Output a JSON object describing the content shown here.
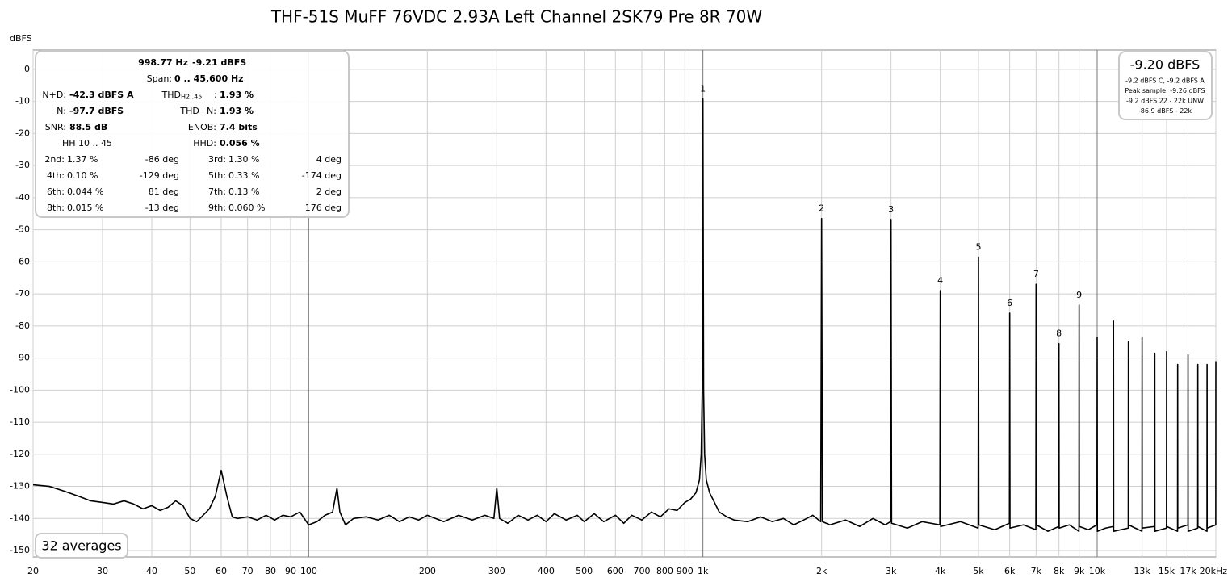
{
  "chart_data": {
    "type": "line",
    "title": "THF-51S MuFF 76VDC 2.93A Left Channel 2SK79 Pre 8R 70W",
    "ylabel": "dBFS",
    "xscale": "log",
    "grid": true,
    "color": "#000000",
    "xlim": [
      20,
      20000
    ],
    "ylim": [
      -152,
      6
    ],
    "yticks": [
      0,
      -10,
      -20,
      -30,
      -40,
      -50,
      -60,
      -70,
      -80,
      -90,
      -100,
      -110,
      -120,
      -130,
      -140,
      -150
    ],
    "xticks": [
      20,
      30,
      40,
      50,
      60,
      70,
      80,
      90,
      100,
      200,
      300,
      400,
      500,
      600,
      700,
      800,
      900,
      {
        "value": 1000,
        "label": "1k"
      },
      {
        "value": 2000,
        "label": "2k"
      },
      {
        "value": 3000,
        "label": "3k"
      },
      {
        "value": 4000,
        "label": "4k"
      },
      {
        "value": 5000,
        "label": "5k"
      },
      {
        "value": 6000,
        "label": "6k"
      },
      {
        "value": 7000,
        "label": "7k"
      },
      {
        "value": 8000,
        "label": "8k"
      },
      {
        "value": 9000,
        "label": "9k"
      },
      {
        "value": 10000,
        "label": "10k"
      },
      {
        "value": 13000,
        "label": "13k"
      },
      {
        "value": 15000,
        "label": "15k"
      },
      {
        "value": 17000,
        "label": "17k"
      },
      {
        "value": 20000,
        "label": "20kHz"
      }
    ],
    "x": [
      20,
      22,
      24,
      26,
      28,
      30,
      32,
      34,
      36,
      38,
      40,
      42,
      44,
      46,
      48,
      50,
      52,
      54,
      56,
      58,
      60,
      62,
      64,
      66,
      70,
      74,
      78,
      82,
      86,
      90,
      95,
      100,
      105,
      110,
      115,
      118,
      120,
      124,
      130,
      140,
      150,
      160,
      170,
      180,
      190,
      200,
      220,
      240,
      260,
      280,
      295,
      300,
      305,
      320,
      340,
      360,
      380,
      400,
      420,
      450,
      480,
      500,
      530,
      560,
      600,
      630,
      660,
      700,
      740,
      780,
      820,
      860,
      900,
      930,
      960,
      980,
      990,
      996,
      1000,
      1004,
      1010,
      1020,
      1040,
      1070,
      1100,
      1150,
      1200,
      1300,
      1400,
      1500,
      1600,
      1700,
      1800,
      1900,
      1990,
      2000,
      2010,
      2100,
      2300,
      2500,
      2700,
      2900,
      2990,
      3000,
      3010,
      3300,
      3600,
      3990,
      4000,
      4010,
      4500,
      4990,
      5000,
      5010,
      5500,
      5990,
      6000,
      6010,
      6500,
      6990,
      7000,
      7010,
      7500,
      7990,
      8000,
      8010,
      8500,
      8990,
      9000,
      9010,
      9500,
      9990,
      10000,
      10010,
      10500,
      10990,
      11000,
      11010,
      11990,
      12000,
      12010,
      12990,
      13000,
      13010,
      13990,
      14000,
      14010,
      14990,
      15000,
      15010,
      15990,
      16000,
      16010,
      16990,
      17000,
      17010,
      17990,
      18000,
      18010,
      18990,
      19000,
      19010,
      19990,
      20000
    ],
    "values": [
      -129.5,
      -130,
      -131.5,
      -133,
      -134.5,
      -135,
      -135.5,
      -134.5,
      -135.5,
      -137,
      -136,
      -137.5,
      -136.5,
      -134.5,
      -136,
      -140,
      -141,
      -139,
      -137,
      -133,
      -125,
      -133,
      -139.5,
      -140,
      -139.5,
      -140.5,
      -139,
      -140.5,
      -139,
      -139.5,
      -138,
      -142,
      -141,
      -139,
      -138,
      -130.5,
      -138,
      -142,
      -140,
      -139.5,
      -140.5,
      -139,
      -141,
      -139.5,
      -140.5,
      -139,
      -141,
      -139,
      -140.5,
      -139,
      -140,
      -130.5,
      -140,
      -141.5,
      -139,
      -140.5,
      -139,
      -141,
      -138.5,
      -140.5,
      -139,
      -141,
      -138.5,
      -141,
      -139,
      -141.5,
      -139,
      -140.5,
      -138,
      -139.5,
      -137,
      -137.5,
      -135,
      -134,
      -132,
      -128,
      -120,
      -100,
      -9.2,
      -100,
      -120,
      -128,
      -132,
      -135,
      -138,
      -139.5,
      -140.5,
      -141,
      -139.5,
      -141,
      -140,
      -142,
      -140.5,
      -139,
      -141,
      -46.5,
      -141,
      -142,
      -140.5,
      -142.5,
      -140,
      -142,
      -141,
      -46.8,
      -141.5,
      -143,
      -141,
      -142,
      -69,
      -142.5,
      -141,
      -143,
      -58.5,
      -142,
      -143.5,
      -141.5,
      -76,
      -143,
      -142,
      -143.5,
      -67,
      -142,
      -144,
      -142.5,
      -85.5,
      -143,
      -142,
      -144,
      -73.5,
      -142.5,
      -143.5,
      -142,
      -83.5,
      -144,
      -143,
      -142.5,
      -78.5,
      -144,
      -143,
      -85,
      -142,
      -144,
      -83.5,
      -143,
      -142.5,
      -88.5,
      -144,
      -143,
      -88,
      -142.5,
      -144,
      -92,
      -143,
      -142,
      -89,
      -144,
      -143,
      -92,
      -142.5,
      -144,
      -92,
      -143,
      -142,
      -91
    ],
    "markers": [
      {
        "label": 1,
        "x": 1000,
        "y": -9.2
      },
      {
        "label": 2,
        "x": 2000,
        "y": -46.5
      },
      {
        "label": 3,
        "x": 3000,
        "y": -46.8
      },
      {
        "label": 4,
        "x": 4000,
        "y": -69
      },
      {
        "label": 5,
        "x": 5000,
        "y": -58.5
      },
      {
        "label": 6,
        "x": 6000,
        "y": -76
      },
      {
        "label": 7,
        "x": 7000,
        "y": -67
      },
      {
        "label": 8,
        "x": 8000,
        "y": -85.5
      },
      {
        "label": 9,
        "x": 9000,
        "y": -73.5
      }
    ],
    "readout": {
      "frequency": "998.77 Hz",
      "level": "-9.21 dBFS",
      "span_label": "Span:",
      "span": "0 .. 45,600 Hz"
    },
    "stats": [
      {
        "label": "N+D:",
        "value": "-42.3 dBFS A"
      },
      {
        "label": "THD",
        "sub": "H2..45",
        "colon": ":",
        "value": "1.93 %"
      },
      {
        "label": "N:",
        "value": "-97.7 dBFS"
      },
      {
        "label": "THD+N:",
        "value": "1.93 %"
      },
      {
        "label": "SNR:",
        "value": "88.5 dB"
      },
      {
        "label": "ENOB:",
        "value": "7.4 bits"
      },
      {
        "label": "HH 10 .. 45"
      },
      {
        "label": "HHD:",
        "value": "0.056 %"
      }
    ],
    "harmonics": [
      {
        "label": "2nd:",
        "value": "1.37 %",
        "phase": "-86 deg"
      },
      {
        "label": "3rd:",
        "value": "1.30 %",
        "phase": "4 deg"
      },
      {
        "label": "4th:",
        "value": "0.10 %",
        "phase": "-129 deg"
      },
      {
        "label": "5th:",
        "value": "0.33 %",
        "phase": "-174 deg"
      },
      {
        "label": "6th:",
        "value": "0.044 %",
        "phase": "81 deg"
      },
      {
        "label": "7th:",
        "value": "0.13 %",
        "phase": "2 deg"
      },
      {
        "label": "8th:",
        "value": "0.015 %",
        "phase": "-13 deg"
      },
      {
        "label": "9th:",
        "value": "0.060 %",
        "phase": "176 deg"
      }
    ],
    "level_box": {
      "main": "-9.20 dBFS",
      "lines": [
        "-9.2 dBFS C, -9.2 dBFS A",
        "Peak sample: -9.26 dBFS",
        "-9.2 dBFS 22 - 22k UNW",
        "-86.9 dBFS - 22k"
      ]
    },
    "averages": "32 averages"
  }
}
